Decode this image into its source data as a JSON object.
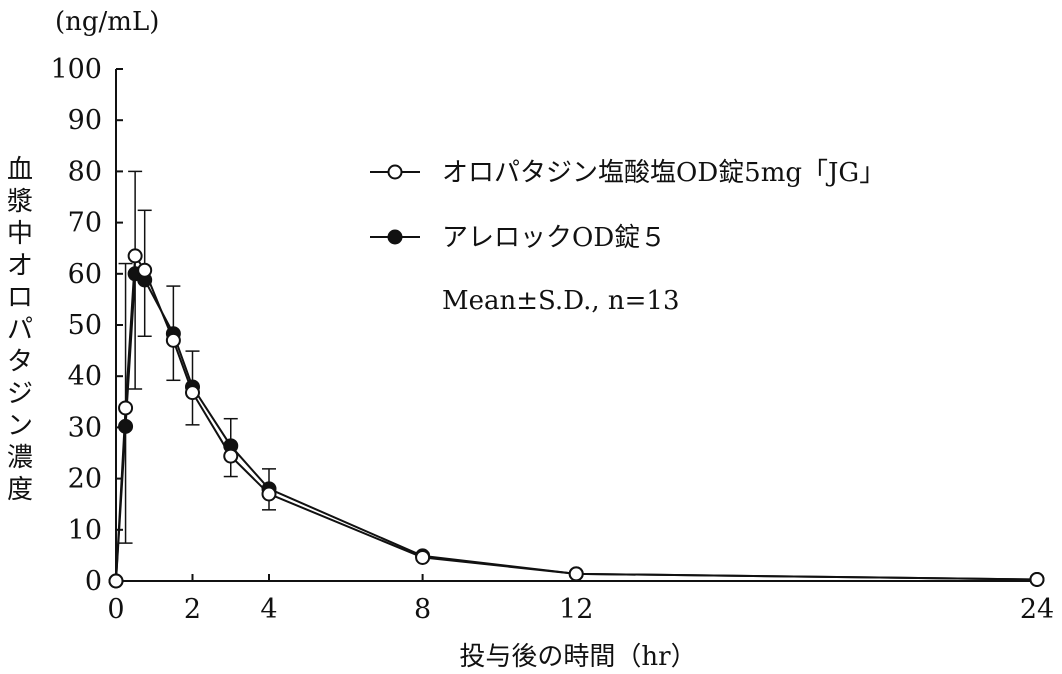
{
  "chart_data": {
    "type": "line",
    "y_unit_label": "(ng/mL)",
    "ylabel": "血漿中オロパタジン濃度",
    "xlabel": "投与後の時間（hr）",
    "xlim": [
      0,
      24
    ],
    "ylim": [
      0,
      100
    ],
    "x_scale": "piecewise",
    "x_ticks": [
      0,
      2,
      4,
      8,
      12,
      24
    ],
    "y_ticks": [
      0,
      10,
      20,
      30,
      40,
      50,
      60,
      70,
      80,
      90,
      100
    ],
    "x_tick_labels": [
      "0",
      "2",
      "4",
      "8",
      "12",
      "24"
    ],
    "y_tick_labels": [
      "0",
      "10",
      "20",
      "30",
      "40",
      "50",
      "60",
      "70",
      "80",
      "90",
      "100"
    ],
    "grid": false,
    "legend_position": "top-right",
    "annotation": "Mean±S.D., n=13",
    "series": [
      {
        "name": "オロパタジン塩酸塩OD錠5mg「JG」",
        "marker": "open-circle",
        "color": "#111111",
        "x": [
          0,
          0.25,
          0.5,
          0.75,
          1.5,
          2,
          3,
          4,
          8,
          12,
          24
        ],
        "y": [
          0,
          33.8,
          63.5,
          60.7,
          47.0,
          36.8,
          24.4,
          17.0,
          4.6,
          1.4,
          0.3
        ]
      },
      {
        "name": "アレロックOD錠５",
        "marker": "filled-circle",
        "color": "#111111",
        "x": [
          0,
          0.25,
          0.5,
          0.75,
          1.5,
          2,
          3,
          4,
          8,
          12,
          24
        ],
        "y": [
          0,
          30.2,
          60.0,
          58.8,
          48.3,
          37.9,
          26.4,
          18.0,
          4.9,
          1.4,
          0.3
        ],
        "sd_upper": [
          0,
          62.0,
          80.0,
          72.4,
          57.6,
          44.9,
          31.7,
          21.9,
          5.4,
          1.6,
          0.4
        ],
        "sd_lower": [
          0,
          7.4,
          37.5,
          47.8,
          39.2,
          30.5,
          20.4,
          13.9,
          4.2,
          1.2,
          0.2
        ]
      }
    ]
  }
}
